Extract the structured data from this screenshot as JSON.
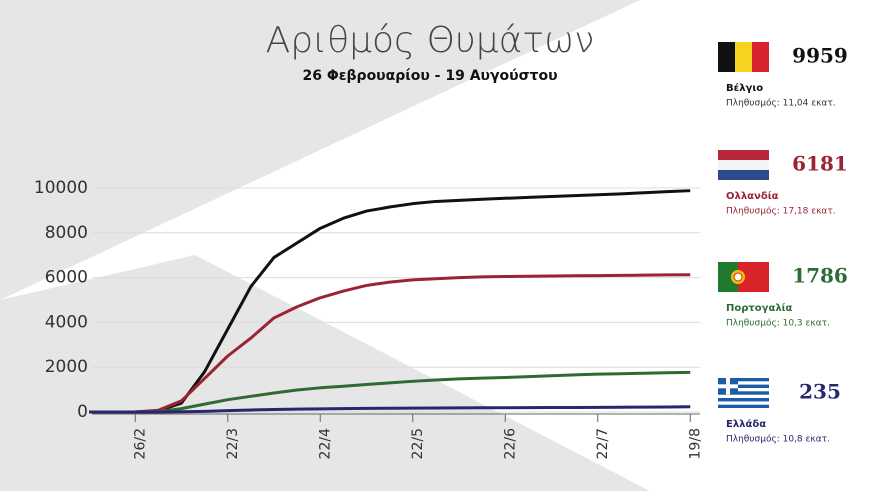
{
  "chart_data": {
    "type": "line",
    "title": "Αριθμός Θυμάτων",
    "subtitle": "26 Φεβρουαρίου - 19 Αυγούστου",
    "categories": [
      null,
      null,
      "26/2",
      null,
      null,
      null,
      "22/3",
      null,
      null,
      null,
      "22/4",
      null,
      null,
      null,
      "22/5",
      null,
      null,
      null,
      "22/6",
      null,
      null,
      null,
      "22/7",
      null,
      null,
      null,
      "19/8"
    ],
    "ylim": [
      0,
      10000
    ],
    "yticks": [
      0,
      2000,
      4000,
      6000,
      8000,
      10000
    ],
    "grid": true,
    "series": [
      {
        "name": "Βέλγιο",
        "color": "#111111",
        "total": 9959,
        "population": "Πληθυσμός: 11,04 εκατ.",
        "values": [
          0,
          0,
          0,
          50,
          400,
          1800,
          3700,
          5600,
          6900,
          7550,
          8200,
          8650,
          8970,
          9150,
          9300,
          9400,
          9450,
          9500,
          9540,
          9580,
          9620,
          9660,
          9700,
          9740,
          9790,
          9840,
          9880
        ]
      },
      {
        "name": "Ολλανδία",
        "color": "#9b2335",
        "total": 6181,
        "population": "Πληθυσμός: 17,18 εκατ.",
        "values": [
          0,
          0,
          0,
          80,
          500,
          1500,
          2500,
          3300,
          4200,
          4700,
          5100,
          5400,
          5650,
          5800,
          5900,
          5950,
          6000,
          6030,
          6050,
          6060,
          6070,
          6080,
          6090,
          6100,
          6110,
          6120,
          6130
        ]
      },
      {
        "name": "Πορτογαλία",
        "color": "#2e6b34",
        "total": 1786,
        "population": "Πληθυσμός: 10,3 εκατ.",
        "values": [
          0,
          0,
          0,
          20,
          150,
          350,
          550,
          700,
          850,
          980,
          1080,
          1150,
          1230,
          1300,
          1370,
          1430,
          1480,
          1510,
          1540,
          1580,
          1620,
          1660,
          1690,
          1710,
          1730,
          1750,
          1770
        ]
      },
      {
        "name": "Ελλάδα",
        "color": "#27276e",
        "total": 235,
        "population": "Πληθυσμός: 10,8 εκατ.",
        "values": [
          0,
          0,
          0,
          0,
          10,
          30,
          60,
          90,
          110,
          130,
          140,
          150,
          160,
          170,
          175,
          180,
          185,
          190,
          192,
          195,
          200,
          203,
          207,
          212,
          218,
          225,
          232
        ]
      }
    ]
  }
}
